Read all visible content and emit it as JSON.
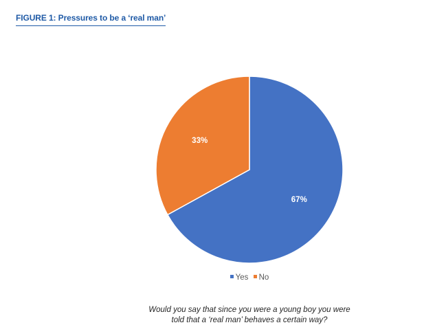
{
  "figure": {
    "title": "FIGURE 1:  Pressures to be a ‘real man’",
    "title_color": "#1f5aa6"
  },
  "chart_data": {
    "type": "pie",
    "title": "",
    "categories": [
      "Yes",
      "No"
    ],
    "values": [
      67,
      33
    ],
    "labels": [
      "67%",
      "33%"
    ],
    "colors": [
      "#4472c4",
      "#ed7d31"
    ],
    "start_angle_deg": 0,
    "direction": "clockwise",
    "legend": {
      "placement": "bottom",
      "entries": [
        "Yes",
        "No"
      ]
    }
  },
  "question": {
    "line1": "Would you say that since you were a young boy you were",
    "line2": "told that a ‘real man’ behaves a certain way?"
  }
}
